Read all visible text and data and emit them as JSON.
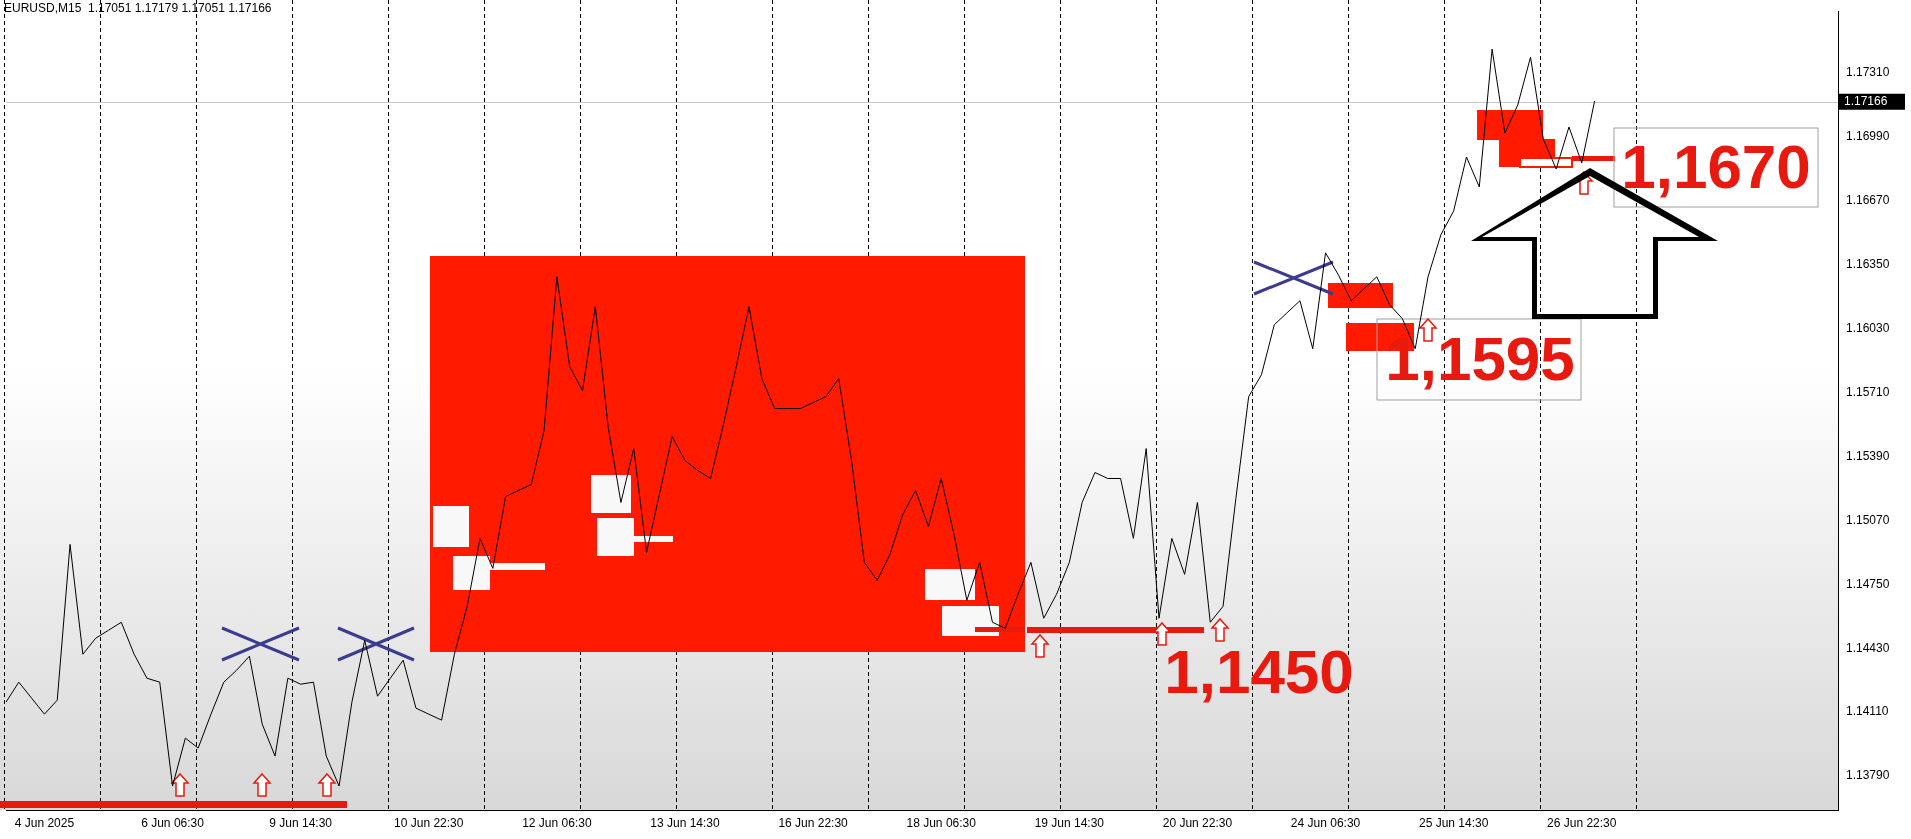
{
  "chart_data": {
    "type": "line",
    "title": "EURUSD,M15  1.17051 1.17179 1.17051 1.17166",
    "categories": [
      null,
      null,
      null,
      "4 Jun 2025",
      null,
      null,
      null,
      null,
      null,
      null,
      null,
      null,
      null,
      "6 Jun 06:30",
      null,
      null,
      null,
      null,
      null,
      null,
      null,
      null,
      null,
      "9 Jun 14:30",
      null,
      null,
      null,
      null,
      null,
      null,
      null,
      null,
      null,
      "10 Jun 22:30",
      null,
      null,
      null,
      null,
      null,
      null,
      null,
      null,
      null,
      "12 Jun 06:30",
      null,
      null,
      null,
      null,
      null,
      null,
      null,
      null,
      null,
      "13 Jun 14:30",
      null,
      null,
      null,
      null,
      null,
      null,
      null,
      null,
      null,
      "16 Jun 22:30",
      null,
      null,
      null,
      null,
      null,
      null,
      null,
      null,
      null,
      "18 Jun 06:30",
      null,
      null,
      null,
      null,
      null,
      null,
      null,
      null,
      null,
      "19 Jun 14:30",
      null,
      null,
      null,
      null,
      null,
      null,
      null,
      null,
      null,
      "20 Jun 22:30",
      null,
      null,
      null,
      null,
      null,
      null,
      null,
      null,
      null,
      "24 Jun 06:30",
      null,
      null,
      null,
      null,
      null,
      null,
      null,
      null,
      null,
      "25 Jun 14:30",
      null,
      null,
      null,
      null,
      null,
      null,
      null,
      null,
      null,
      "26 Jun 22:30",
      null,
      null,
      null,
      null,
      null,
      null,
      null,
      null,
      null,
      null,
      null,
      null,
      null,
      null,
      null,
      null,
      null,
      null,
      null,
      null
    ],
    "series": [
      {
        "color": "#000000",
        "values": [
          1.1416,
          1.1426,
          1.1418,
          1.141,
          1.1417,
          1.1495,
          1.144,
          1.1448,
          1.1452,
          1.1456,
          1.144,
          1.1428,
          1.1426,
          1.1374,
          1.1398,
          1.1393,
          1.141,
          1.1426,
          1.1432,
          1.1439,
          1.1405,
          1.1389,
          1.1428,
          1.1425,
          1.1426,
          1.1389,
          1.1374,
          1.1416,
          1.1447,
          1.1419,
          1.1428,
          1.1437,
          1.1413,
          1.141,
          1.1407,
          1.144,
          1.1464,
          1.1498,
          1.1483,
          1.1519,
          1.1522,
          1.1525,
          1.1552,
          1.1629,
          1.1584,
          1.1572,
          1.1614,
          1.1554,
          1.1516,
          1.1543,
          1.1491,
          1.152,
          1.1549,
          1.1537,
          1.1532,
          1.1528,
          1.1555,
          1.1584,
          1.1614,
          1.1578,
          1.1563,
          1.1563,
          1.1563,
          1.1566,
          1.1569,
          1.1578,
          1.1537,
          1.1486,
          1.1477,
          1.149,
          1.151,
          1.1522,
          1.1504,
          1.1528,
          1.15,
          1.1467,
          1.1486,
          1.1456,
          1.1453,
          1.147,
          1.1486,
          1.1458,
          1.147,
          1.1486,
          1.1516,
          1.1531,
          1.1528,
          1.1528,
          1.1498,
          1.1543,
          1.1458,
          1.1498,
          1.148,
          1.1516,
          1.1456,
          1.1464,
          1.1518,
          1.1569,
          1.158,
          1.1605,
          1.1611,
          1.1617,
          1.1593,
          1.1641,
          1.163,
          1.1617,
          1.1623,
          1.1629,
          1.1615,
          1.1608,
          1.1593,
          1.1629,
          1.165,
          1.1662,
          1.1689,
          1.1674,
          1.1743,
          1.1701,
          1.1715,
          1.1739,
          1.1698,
          1.1683,
          1.1704,
          1.1686,
          1.1717,
          null,
          null,
          null,
          null,
          null,
          null,
          null,
          null,
          null,
          null,
          null,
          null,
          null,
          null,
          null,
          null,
          null,
          null,
          null
        ]
      }
    ],
    "ylim": [
      1.1362,
      1.1762
    ],
    "yticks": [
      {
        "value": 1.1379,
        "label": "1.13790"
      },
      {
        "value": 1.1411,
        "label": "1.14110"
      },
      {
        "value": 1.1443,
        "label": "1.14430"
      },
      {
        "value": 1.1475,
        "label": "1.14750"
      },
      {
        "value": 1.1507,
        "label": "1.15070"
      },
      {
        "value": 1.1539,
        "label": "1.15390"
      },
      {
        "value": 1.1571,
        "label": "1.15710"
      },
      {
        "value": 1.1603,
        "label": "1.16030"
      },
      {
        "value": 1.1635,
        "label": "1.16350"
      },
      {
        "value": 1.1667,
        "label": "1.16670"
      },
      {
        "value": 1.1699,
        "label": "1.16990"
      },
      {
        "value": 1.1731,
        "label": "1.17310"
      }
    ],
    "marker": "none",
    "line_style": "solid",
    "grid": false,
    "legend": false,
    "ref_lines": [
      {
        "axis": "y",
        "value": 1.17166,
        "label": "1.17166",
        "color": "#c8c8c8",
        "line_style": "solid"
      }
    ],
    "annotations": [
      "1,1450",
      "1,1595",
      "1,1670"
    ]
  }
}
